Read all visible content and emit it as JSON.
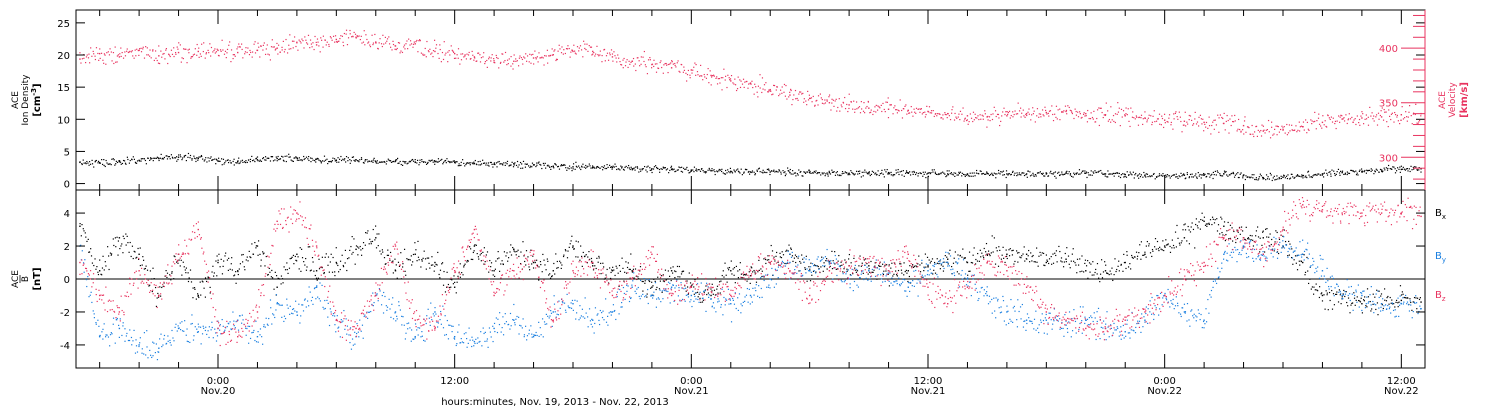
{
  "chart_data": {
    "type": "scatter",
    "xlabel": "hours:minutes, Nov. 19, 2013 - Nov. 22, 2013",
    "xlim": [
      16.8,
      85.2
    ],
    "x_ticks": [
      {
        "hour": 24,
        "time": "0:00",
        "date": "Nov.20"
      },
      {
        "hour": 36,
        "time": "12:00",
        "date": ""
      },
      {
        "hour": 48,
        "time": "0:00",
        "date": "Nov.21"
      },
      {
        "hour": 60,
        "time": "12:00",
        "date": "Nov.21"
      },
      {
        "hour": 72,
        "time": "0:00",
        "date": "Nov.22"
      },
      {
        "hour": 84,
        "time": "12:00",
        "date": "Nov.22"
      }
    ],
    "colors": {
      "density": "#000000",
      "velocity": "#e8335f",
      "bx": "#000000",
      "by": "#1a7fe0",
      "bz": "#e8335f"
    },
    "panels": [
      {
        "ylabel_lines": [
          "ACE",
          "Ion Density"
        ],
        "yunit_base": "[cm",
        "yunit_sup": "-3",
        "yunit_end": "]",
        "ylim": [
          -1,
          27
        ],
        "yticks": [
          0,
          5,
          10,
          15,
          20,
          25
        ],
        "right_axis": {
          "ylabel_lines": [
            "ACE",
            "Velocity"
          ],
          "yunit": "[km/s]",
          "ylim": [
            270,
            435
          ],
          "yticks": [
            300,
            350,
            400
          ]
        },
        "series": [
          {
            "key": "density",
            "noise": 0.45,
            "x": [
              17,
              18,
              19,
              20,
              21,
              22,
              23,
              24,
              25,
              26,
              27,
              28,
              29,
              30,
              31,
              32,
              33,
              34,
              35,
              36,
              37,
              38,
              39,
              40,
              41,
              42,
              43,
              44,
              45,
              46,
              47,
              48,
              49,
              50,
              51,
              52,
              53,
              54,
              55,
              56,
              57,
              58,
              59,
              60,
              61,
              62,
              63,
              64,
              65,
              66,
              67,
              68,
              69,
              70,
              71,
              72,
              73,
              74,
              75,
              76,
              77,
              78,
              79,
              80,
              81,
              82,
              83,
              84,
              85
            ],
            "y": [
              3.3,
              3.2,
              3.4,
              3.6,
              3.9,
              4.1,
              3.9,
              3.5,
              3.4,
              3.7,
              3.9,
              4.0,
              3.8,
              3.6,
              3.7,
              3.4,
              3.5,
              3.3,
              3.4,
              3.3,
              3.1,
              3.0,
              3.1,
              2.9,
              2.7,
              2.6,
              2.5,
              2.5,
              2.3,
              2.3,
              2.2,
              2.1,
              2.0,
              1.9,
              1.8,
              1.8,
              1.7,
              1.7,
              1.7,
              1.6,
              1.7,
              1.7,
              1.6,
              1.6,
              1.5,
              1.5,
              1.6,
              1.5,
              1.5,
              1.5,
              1.6,
              1.6,
              1.5,
              1.4,
              1.3,
              1.2,
              1.3,
              1.3,
              1.5,
              1.3,
              0.9,
              1.0,
              1.2,
              1.5,
              1.7,
              1.9,
              2.1,
              2.2,
              2.3
            ]
          },
          {
            "key": "velocity",
            "axis": "right",
            "noise": 7,
            "x": [
              17,
              18,
              19,
              20,
              21,
              22,
              23,
              24,
              25,
              26,
              27,
              28,
              29,
              30,
              31,
              32,
              33,
              34,
              35,
              36,
              37,
              38,
              39,
              40,
              41,
              42,
              43,
              44,
              45,
              46,
              47,
              48,
              49,
              50,
              51,
              52,
              53,
              54,
              55,
              56,
              57,
              58,
              59,
              60,
              61,
              62,
              63,
              64,
              65,
              66,
              67,
              68,
              69,
              70,
              71,
              72,
              73,
              74,
              75,
              76,
              77,
              78,
              79,
              80,
              81,
              82,
              83,
              84,
              85
            ],
            "y": [
              390,
              395,
              392,
              398,
              393,
              396,
              397,
              398,
              396,
              398,
              400,
              405,
              403,
              408,
              410,
              405,
              402,
              404,
              397,
              395,
              392,
              387,
              388,
              391,
              394,
              397,
              397,
              392,
              388,
              385,
              382,
              380,
              375,
              370,
              368,
              362,
              357,
              354,
              350,
              348,
              345,
              344,
              343,
              342,
              340,
              338,
              337,
              338,
              340,
              341,
              342,
              340,
              339,
              338,
              336,
              334,
              333,
              332,
              331,
              329,
              324,
              325,
              328,
              332,
              335,
              336,
              337,
              339,
              340
            ]
          }
        ]
      },
      {
        "ylabel_lines": [
          "ACE",
          "B"
        ],
        "yunit": "[nT]",
        "ylim": [
          -5.4,
          5.4
        ],
        "yticks": [
          -4,
          -2,
          0,
          2,
          4
        ],
        "legend": [
          {
            "key": "bx",
            "label": "B",
            "sub": "x"
          },
          {
            "key": "by",
            "label": "B",
            "sub": "y"
          },
          {
            "key": "bz",
            "label": "B",
            "sub": "z"
          }
        ],
        "series": [
          {
            "key": "bx",
            "noise": 0.7,
            "x": [
              17,
              18,
              19,
              20,
              21,
              22,
              23,
              24,
              25,
              26,
              27,
              28,
              29,
              30,
              31,
              32,
              33,
              34,
              35,
              36,
              37,
              38,
              39,
              40,
              41,
              42,
              43,
              44,
              45,
              46,
              47,
              48,
              49,
              50,
              51,
              52,
              53,
              54,
              55,
              56,
              57,
              58,
              59,
              60,
              61,
              62,
              63,
              64,
              65,
              66,
              67,
              68,
              69,
              70,
              71,
              72,
              73,
              74,
              75,
              76,
              77,
              78,
              79,
              80,
              81,
              82,
              83,
              84,
              85
            ],
            "y": [
              3.2,
              0.5,
              2.5,
              1.5,
              -1.0,
              1.5,
              -1.0,
              1.0,
              0.5,
              2.0,
              -0.5,
              1.5,
              0.5,
              1.0,
              1.8,
              2.5,
              0.5,
              1.5,
              1.0,
              -0.5,
              2.0,
              0.5,
              1.8,
              1.0,
              0.5,
              2.0,
              0.8,
              0.5,
              0.5,
              -0.5,
              0.5,
              -0.5,
              -1.0,
              0.5,
              0.2,
              1.0,
              1.5,
              0.5,
              1.0,
              0.8,
              0.8,
              0.5,
              0.5,
              0.8,
              1.2,
              1.0,
              1.5,
              1.5,
              1.5,
              1.0,
              1.2,
              0.5,
              0.5,
              1.0,
              1.5,
              2.0,
              2.5,
              3.5,
              3.2,
              2.5,
              2.5,
              2.0,
              1.0,
              -1.0,
              -1.2,
              -1.5,
              -1.5,
              -1.3,
              -1.4
            ]
          },
          {
            "key": "by",
            "noise": 0.7,
            "x": [
              17,
              18,
              19,
              20,
              21,
              22,
              23,
              24,
              25,
              26,
              27,
              28,
              29,
              30,
              31,
              32,
              33,
              34,
              35,
              36,
              37,
              38,
              39,
              40,
              41,
              42,
              43,
              44,
              45,
              46,
              47,
              48,
              49,
              50,
              51,
              52,
              53,
              54,
              55,
              56,
              57,
              58,
              59,
              60,
              61,
              62,
              63,
              64,
              65,
              66,
              67,
              68,
              69,
              70,
              71,
              72,
              73,
              74,
              75,
              76,
              77,
              78,
              79,
              80,
              81,
              82,
              83,
              84,
              85
            ],
            "y": [
              2.0,
              -3.5,
              -3.0,
              -4.0,
              -4.2,
              -3.0,
              -3.2,
              -3.0,
              -2.5,
              -3.5,
              -1.5,
              -2.0,
              -0.5,
              -2.5,
              -3.5,
              -1.0,
              -2.0,
              -3.5,
              -2.0,
              -3.5,
              -3.8,
              -3.0,
              -2.5,
              -3.5,
              -2.0,
              -1.5,
              -2.5,
              -2.0,
              -0.5,
              -1.0,
              -0.5,
              -1.0,
              -1.2,
              -1.5,
              -1.0,
              0.0,
              1.0,
              0.5,
              1.0,
              0.0,
              0.5,
              0.5,
              -0.5,
              0.5,
              1.0,
              0.0,
              -1.0,
              -2.0,
              -2.5,
              -2.5,
              -2.8,
              -2.5,
              -3.0,
              -3.2,
              -2.5,
              -1.0,
              -2.0,
              -2.5,
              1.5,
              2.0,
              1.5,
              2.0,
              1.5,
              0.5,
              -1.0,
              -1.0,
              -1.5,
              -1.5,
              -1.8
            ]
          },
          {
            "key": "bz",
            "noise": 0.7,
            "x": [
              17,
              18,
              19,
              20,
              21,
              22,
              23,
              24,
              25,
              26,
              27,
              28,
              29,
              30,
              31,
              32,
              33,
              34,
              35,
              36,
              37,
              38,
              39,
              40,
              41,
              42,
              43,
              44,
              45,
              46,
              47,
              48,
              49,
              50,
              51,
              52,
              53,
              54,
              55,
              56,
              57,
              58,
              59,
              60,
              61,
              62,
              63,
              64,
              65,
              66,
              67,
              68,
              69,
              70,
              71,
              72,
              73,
              74,
              75,
              76,
              77,
              78,
              79,
              80,
              81,
              82,
              83,
              84,
              85
            ],
            "y": [
              1.0,
              -1.0,
              -2.0,
              0.5,
              -1.0,
              1.5,
              3.0,
              -3.0,
              -3.5,
              -2.0,
              3.5,
              4.0,
              2.0,
              -2.5,
              -3.0,
              -1.0,
              2.0,
              -2.5,
              -3.0,
              0.5,
              3.0,
              -1.0,
              0.5,
              1.5,
              -2.5,
              0.5,
              1.0,
              -1.0,
              0.0,
              1.5,
              -1.0,
              -0.5,
              -0.5,
              -1.0,
              0.5,
              1.0,
              0.5,
              -1.0,
              0.5,
              0.8,
              1.0,
              0.5,
              1.5,
              -0.5,
              -1.5,
              -0.5,
              1.0,
              0.5,
              -0.5,
              -2.0,
              -2.5,
              -3.0,
              -3.0,
              -2.5,
              -2.0,
              -1.0,
              0.0,
              1.0,
              2.5,
              2.5,
              1.5,
              3.0,
              4.5,
              4.2,
              4.0,
              4.0,
              4.0,
              4.0,
              3.8
            ]
          }
        ]
      }
    ]
  }
}
